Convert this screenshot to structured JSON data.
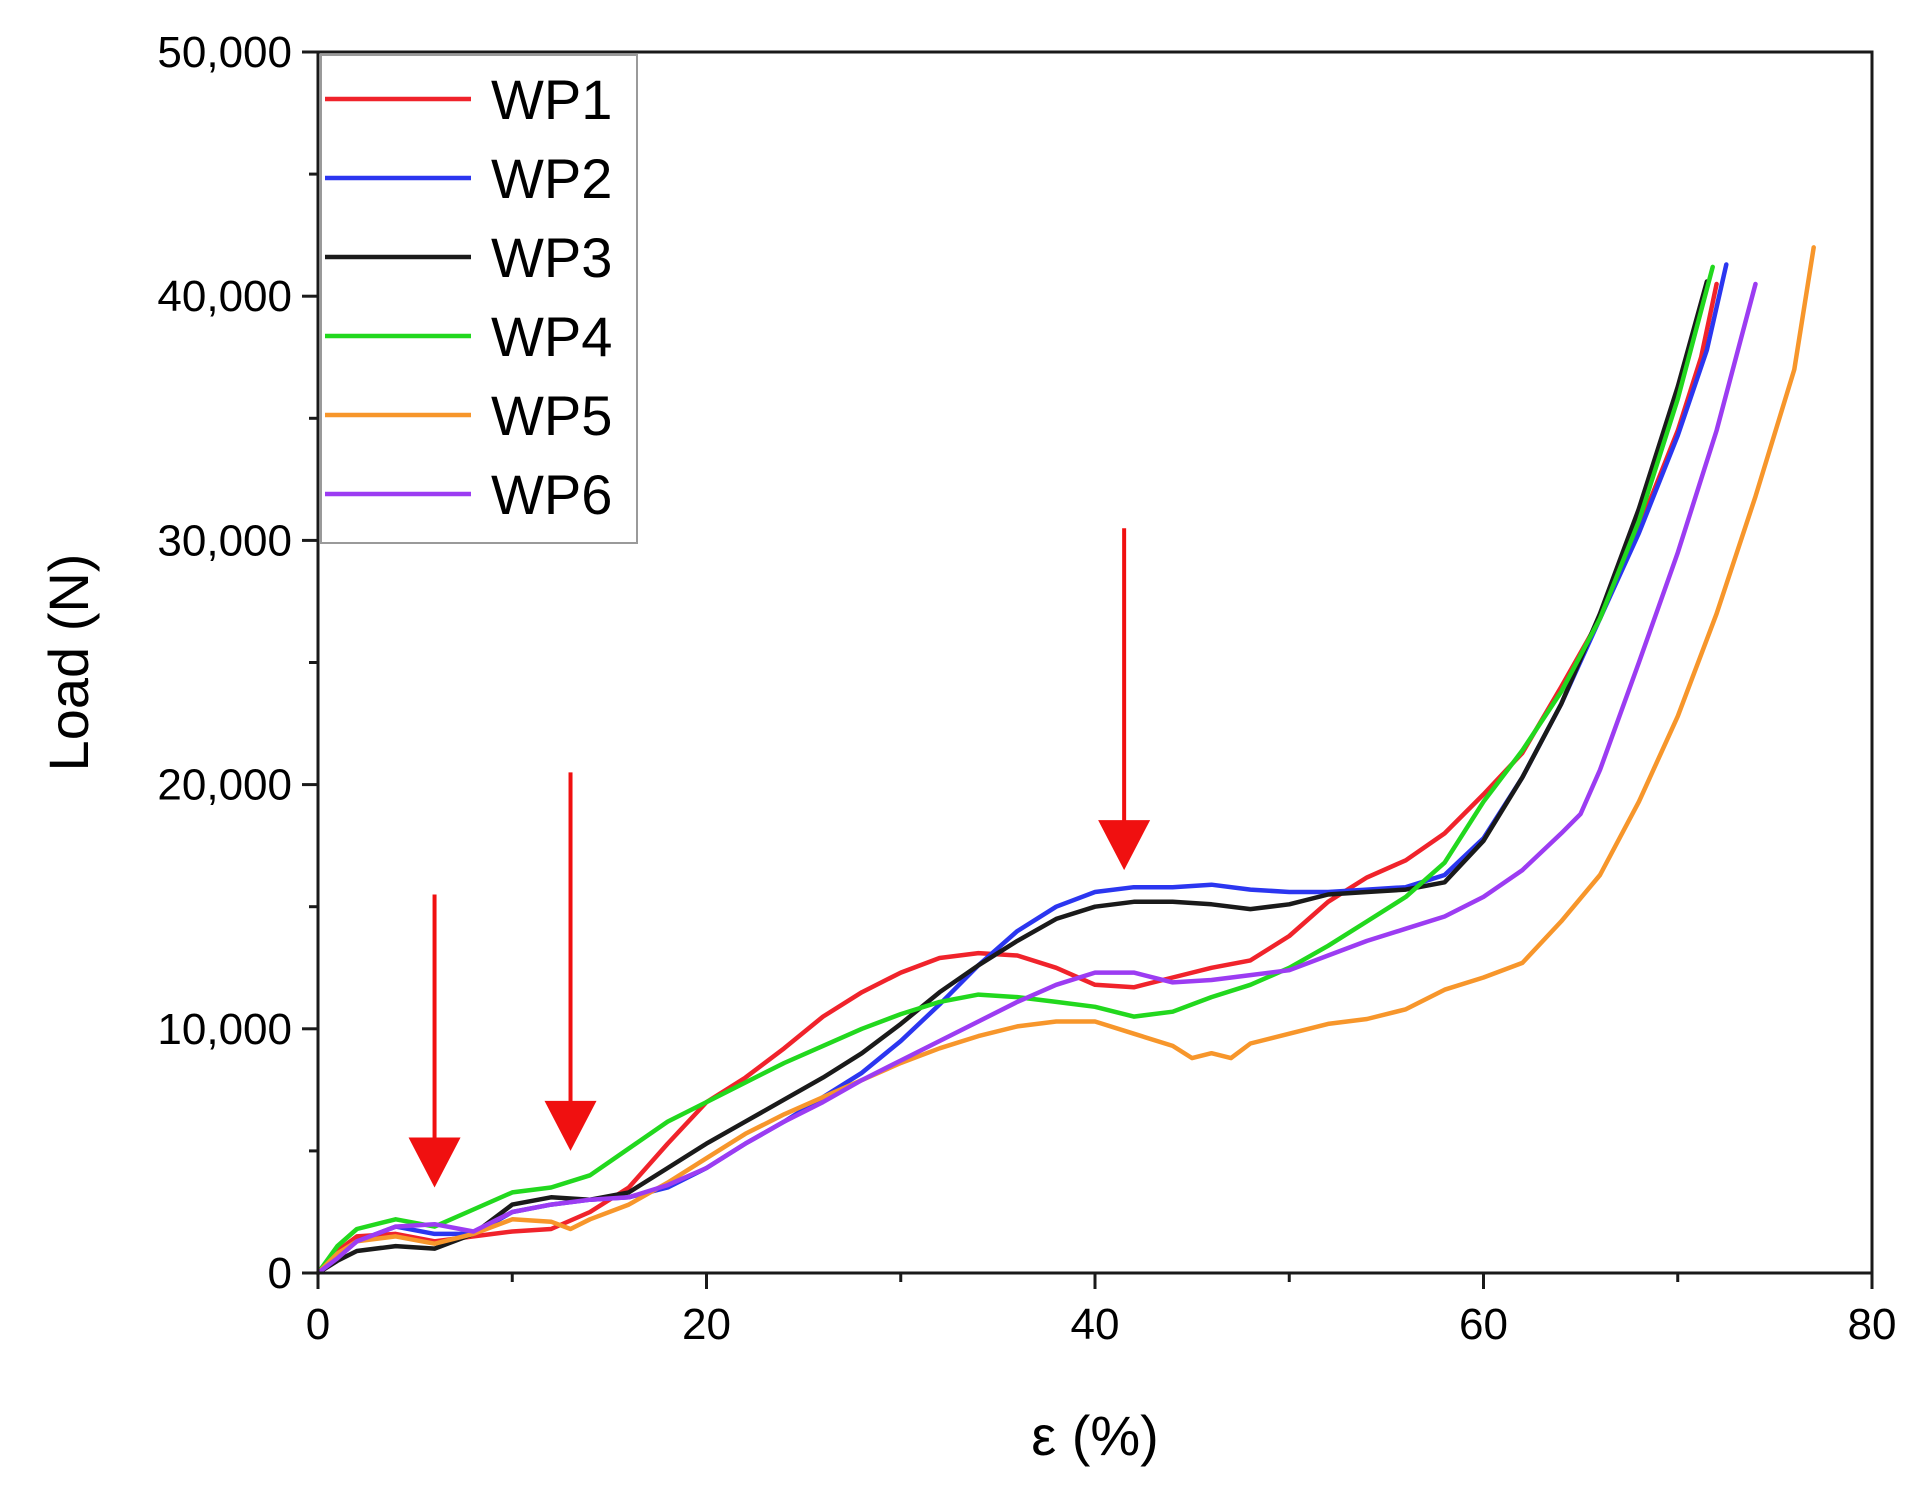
{
  "chart_data": {
    "type": "line",
    "title": "",
    "xlabel": "ε (%)",
    "ylabel": "Load (N)",
    "xlim": [
      0,
      80
    ],
    "ylim": [
      0,
      50000
    ],
    "xticks": [
      0,
      20,
      40,
      60,
      80
    ],
    "xtick_labels": [
      "0",
      "20",
      "40",
      "60",
      "80"
    ],
    "yticks": [
      0,
      10000,
      20000,
      30000,
      40000,
      50000
    ],
    "ytick_labels": [
      "0",
      "10,000",
      "20,000",
      "30,000",
      "40,000",
      "50,000"
    ],
    "grid": false,
    "legend_position": "top-left",
    "series": [
      {
        "name": "WP1",
        "color": "#f0232b",
        "x": [
          0,
          1,
          2,
          4,
          6,
          8,
          10,
          12,
          14,
          16,
          18,
          20,
          22,
          24,
          26,
          28,
          30,
          32,
          34,
          36,
          38,
          40,
          42,
          44,
          46,
          48,
          50,
          52,
          54,
          56,
          58,
          60,
          62,
          64,
          66,
          68,
          70,
          71.2,
          72
        ],
        "y": [
          0,
          900,
          1500,
          1600,
          1300,
          1500,
          1700,
          1800,
          2500,
          3500,
          5300,
          7000,
          8000,
          9200,
          10500,
          11500,
          12300,
          12900,
          13100,
          13000,
          12500,
          11800,
          11700,
          12100,
          12500,
          12800,
          13800,
          15200,
          16200,
          16900,
          18000,
          19600,
          21300,
          24000,
          26800,
          30500,
          34500,
          37500,
          40500
        ]
      },
      {
        "name": "WP2",
        "color": "#2b36f0",
        "x": [
          0,
          1,
          2,
          4,
          6,
          8,
          10,
          12,
          14,
          16,
          18,
          20,
          22,
          24,
          26,
          28,
          30,
          32,
          34,
          36,
          38,
          40,
          42,
          44,
          46,
          48,
          50,
          52,
          54,
          56,
          58,
          60,
          62,
          64,
          66,
          68,
          70,
          71.5,
          72.5
        ],
        "y": [
          0,
          700,
          1300,
          1900,
          1600,
          1600,
          2500,
          2800,
          3000,
          3100,
          3500,
          4300,
          5300,
          6200,
          7200,
          8200,
          9500,
          11000,
          12600,
          14000,
          15000,
          15600,
          15800,
          15800,
          15900,
          15700,
          15600,
          15600,
          15700,
          15800,
          16300,
          17800,
          20300,
          23300,
          26800,
          30300,
          34300,
          37800,
          41300
        ]
      },
      {
        "name": "WP3",
        "color": "#1a1a1a",
        "x": [
          0,
          1,
          2,
          4,
          6,
          8,
          10,
          12,
          14,
          16,
          18,
          20,
          22,
          24,
          26,
          28,
          30,
          32,
          34,
          36,
          38,
          40,
          42,
          44,
          46,
          48,
          50,
          52,
          54,
          56,
          58,
          60,
          62,
          64,
          66,
          68,
          70,
          71.5
        ],
        "y": [
          0,
          500,
          900,
          1100,
          1000,
          1600,
          2800,
          3100,
          3000,
          3300,
          4300,
          5300,
          6200,
          7100,
          8000,
          9000,
          10200,
          11500,
          12600,
          13600,
          14500,
          15000,
          15200,
          15200,
          15100,
          14900,
          15100,
          15500,
          15600,
          15700,
          16000,
          17700,
          20300,
          23300,
          27000,
          31300,
          36300,
          40600
        ]
      },
      {
        "name": "WP4",
        "color": "#22d81e",
        "x": [
          0,
          1,
          2,
          4,
          6,
          8,
          10,
          12,
          14,
          16,
          18,
          20,
          22,
          24,
          26,
          28,
          30,
          32,
          34,
          36,
          38,
          40,
          42,
          44,
          46,
          48,
          50,
          52,
          54,
          56,
          58,
          60,
          62,
          64,
          66,
          68,
          70,
          71.8
        ],
        "y": [
          0,
          1100,
          1800,
          2200,
          1900,
          2600,
          3300,
          3500,
          4000,
          5100,
          6200,
          7000,
          7800,
          8600,
          9300,
          10000,
          10600,
          11100,
          11400,
          11300,
          11100,
          10900,
          10500,
          10700,
          11300,
          11800,
          12500,
          13400,
          14400,
          15400,
          16800,
          19300,
          21400,
          23800,
          26800,
          30800,
          35800,
          41200
        ]
      },
      {
        "name": "WP5",
        "color": "#f7962b",
        "x": [
          0,
          1,
          2,
          4,
          6,
          8,
          10,
          12,
          13,
          14,
          16,
          18,
          20,
          22,
          24,
          26,
          28,
          30,
          32,
          34,
          36,
          38,
          40,
          42,
          44,
          45,
          46,
          47,
          48,
          50,
          52,
          54,
          56,
          58,
          60,
          62,
          64,
          66,
          68,
          70,
          72,
          74,
          76,
          77
        ],
        "y": [
          0,
          800,
          1300,
          1500,
          1200,
          1600,
          2200,
          2100,
          1800,
          2200,
          2800,
          3700,
          4700,
          5700,
          6500,
          7200,
          7900,
          8600,
          9200,
          9700,
          10100,
          10300,
          10300,
          9800,
          9300,
          8800,
          9000,
          8800,
          9400,
          9800,
          10200,
          10400,
          10800,
          11600,
          12100,
          12700,
          14400,
          16300,
          19300,
          22800,
          27000,
          31800,
          37000,
          42000
        ]
      },
      {
        "name": "WP6",
        "color": "#9c3cf2",
        "x": [
          0,
          1,
          2,
          4,
          6,
          8,
          10,
          12,
          14,
          16,
          18,
          20,
          22,
          24,
          26,
          28,
          30,
          32,
          34,
          36,
          38,
          40,
          42,
          44,
          46,
          48,
          50,
          52,
          54,
          56,
          58,
          60,
          62,
          64,
          65,
          66,
          68,
          70,
          72,
          74
        ],
        "y": [
          0,
          600,
          1300,
          1900,
          2000,
          1700,
          2500,
          2800,
          3000,
          3100,
          3600,
          4300,
          5300,
          6200,
          7000,
          7900,
          8700,
          9500,
          10300,
          11100,
          11800,
          12300,
          12300,
          11900,
          12000,
          12200,
          12400,
          13000,
          13600,
          14100,
          14600,
          15400,
          16500,
          18000,
          18800,
          20600,
          25000,
          29500,
          34500,
          40500
        ]
      }
    ],
    "annotations": [
      {
        "type": "arrow",
        "direction": "down",
        "color": "#f01010",
        "x": 6,
        "y_start": 15500,
        "y_end": 3500
      },
      {
        "type": "arrow",
        "direction": "down",
        "color": "#f01010",
        "x": 13,
        "y_start": 20500,
        "y_end": 5000
      },
      {
        "type": "arrow",
        "direction": "down",
        "color": "#f01010",
        "x": 41.5,
        "y_start": 30500,
        "y_end": 16500
      }
    ]
  }
}
